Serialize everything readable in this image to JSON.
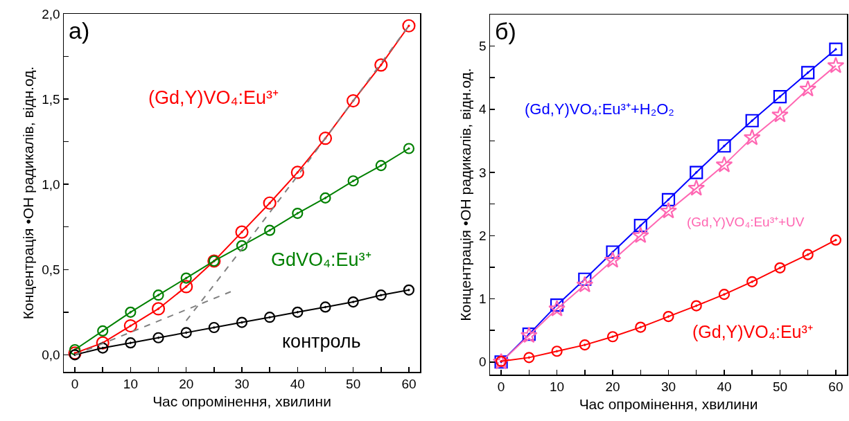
{
  "chart_data": [
    {
      "type": "line",
      "xlabel": "Час опромінення, хвилини",
      "ylabel": "Концентрація •OH радикалів, відн.од.",
      "annotations": [
        "а)"
      ],
      "x": [
        0,
        5,
        10,
        15,
        20,
        25,
        30,
        35,
        40,
        45,
        50,
        55,
        60
      ],
      "series": [
        {
          "name": "(Gd,Y)VO₄:Eu³⁺",
          "color": "#ff0000",
          "marker": "circle",
          "values": [
            0.01,
            0.07,
            0.17,
            0.27,
            0.4,
            0.55,
            0.72,
            0.89,
            1.07,
            1.27,
            1.49,
            1.7,
            1.93
          ]
        },
        {
          "name": "GdVO₄:Eu³⁺",
          "color": "#008000",
          "marker": "circle",
          "values": [
            0.03,
            0.14,
            0.25,
            0.35,
            0.45,
            0.55,
            0.64,
            0.73,
            0.83,
            0.92,
            1.02,
            1.11,
            1.21
          ]
        },
        {
          "name": "контроль",
          "color": "#000000",
          "marker": "circle",
          "values": [
            0.0,
            0.04,
            0.07,
            0.1,
            0.13,
            0.16,
            0.19,
            0.22,
            0.25,
            0.28,
            0.31,
            0.35,
            0.38
          ]
        },
        {
          "type": "line",
          "color": "#808080",
          "marker": "none",
          "line_style": "dashed",
          "x": [
            0,
            28
          ],
          "values": [
            0.0,
            0.37
          ]
        },
        {
          "type": "line",
          "color": "#808080",
          "marker": "none",
          "line_style": "dashed",
          "x": [
            20,
            30,
            40,
            50,
            60
          ],
          "values": [
            0.2,
            0.62,
            1.05,
            1.49,
            1.93
          ]
        }
      ],
      "xlim": [
        -2,
        62
      ],
      "xticks": [
        0,
        {
          "value": 5,
          "label": null
        },
        10,
        {
          "value": 15,
          "label": null
        },
        20,
        {
          "value": 25,
          "label": null
        },
        30,
        {
          "value": 35,
          "label": null
        },
        40,
        {
          "value": 45,
          "label": null
        },
        50,
        {
          "value": 55,
          "label": null
        },
        60
      ],
      "ylim": [
        -0.1,
        2.0
      ],
      "yticks": [
        {
          "value": 0,
          "label": "0,0"
        },
        {
          "value": 0.25,
          "label": null
        },
        {
          "value": 0.5,
          "label": "0,5"
        },
        {
          "value": 0.75,
          "label": null
        },
        {
          "value": 1.0,
          "label": "1,0"
        },
        {
          "value": 1.25,
          "label": null
        },
        {
          "value": 1.5,
          "label": "1,5"
        },
        {
          "value": 1.75,
          "label": null
        },
        {
          "value": 2.0,
          "label": "2,0"
        }
      ],
      "grid": false,
      "legend": false
    },
    {
      "type": "line",
      "xlabel": "Час опромінення, хвилини",
      "ylabel": "Концентрація •OH радикалів, відн.од.",
      "annotations": [
        "б)"
      ],
      "x": [
        0,
        5,
        10,
        15,
        20,
        25,
        30,
        35,
        40,
        45,
        50,
        55,
        60
      ],
      "series": [
        {
          "name": "(Gd,Y)VO₄:Eu³⁺+H₂O₂",
          "color": "#0000ff",
          "marker": "square",
          "values": [
            0.0,
            0.44,
            0.9,
            1.31,
            1.74,
            2.16,
            2.57,
            3.0,
            3.42,
            3.82,
            4.2,
            4.58,
            4.95
          ]
        },
        {
          "name": "(Gd,Y)VO₄:Eu³⁺+UV",
          "color": "#ff66b2",
          "marker": "star",
          "values": [
            0.0,
            0.42,
            0.84,
            1.22,
            1.61,
            2.0,
            2.39,
            2.75,
            3.12,
            3.55,
            3.91,
            4.32,
            4.69
          ]
        },
        {
          "name": "(Gd,Y)VO₄:Eu³⁺",
          "color": "#ff0000",
          "marker": "circle",
          "values": [
            0.01,
            0.07,
            0.17,
            0.27,
            0.4,
            0.55,
            0.72,
            0.89,
            1.07,
            1.27,
            1.49,
            1.7,
            1.93
          ]
        }
      ],
      "xlim": [
        -2,
        62
      ],
      "xticks": [
        0,
        {
          "value": 5,
          "label": null
        },
        10,
        {
          "value": 15,
          "label": null
        },
        20,
        {
          "value": 25,
          "label": null
        },
        30,
        {
          "value": 35,
          "label": null
        },
        40,
        {
          "value": 45,
          "label": null
        },
        50,
        {
          "value": 55,
          "label": null
        },
        60
      ],
      "ylim": [
        -0.2,
        5.5
      ],
      "yticks": [
        0,
        {
          "value": 0.5,
          "label": null
        },
        1,
        {
          "value": 1.5,
          "label": null
        },
        2,
        {
          "value": 2.5,
          "label": null
        },
        3,
        {
          "value": 3.5,
          "label": null
        },
        4,
        {
          "value": 4.5,
          "label": null
        },
        5
      ],
      "grid": false,
      "legend": false
    }
  ]
}
